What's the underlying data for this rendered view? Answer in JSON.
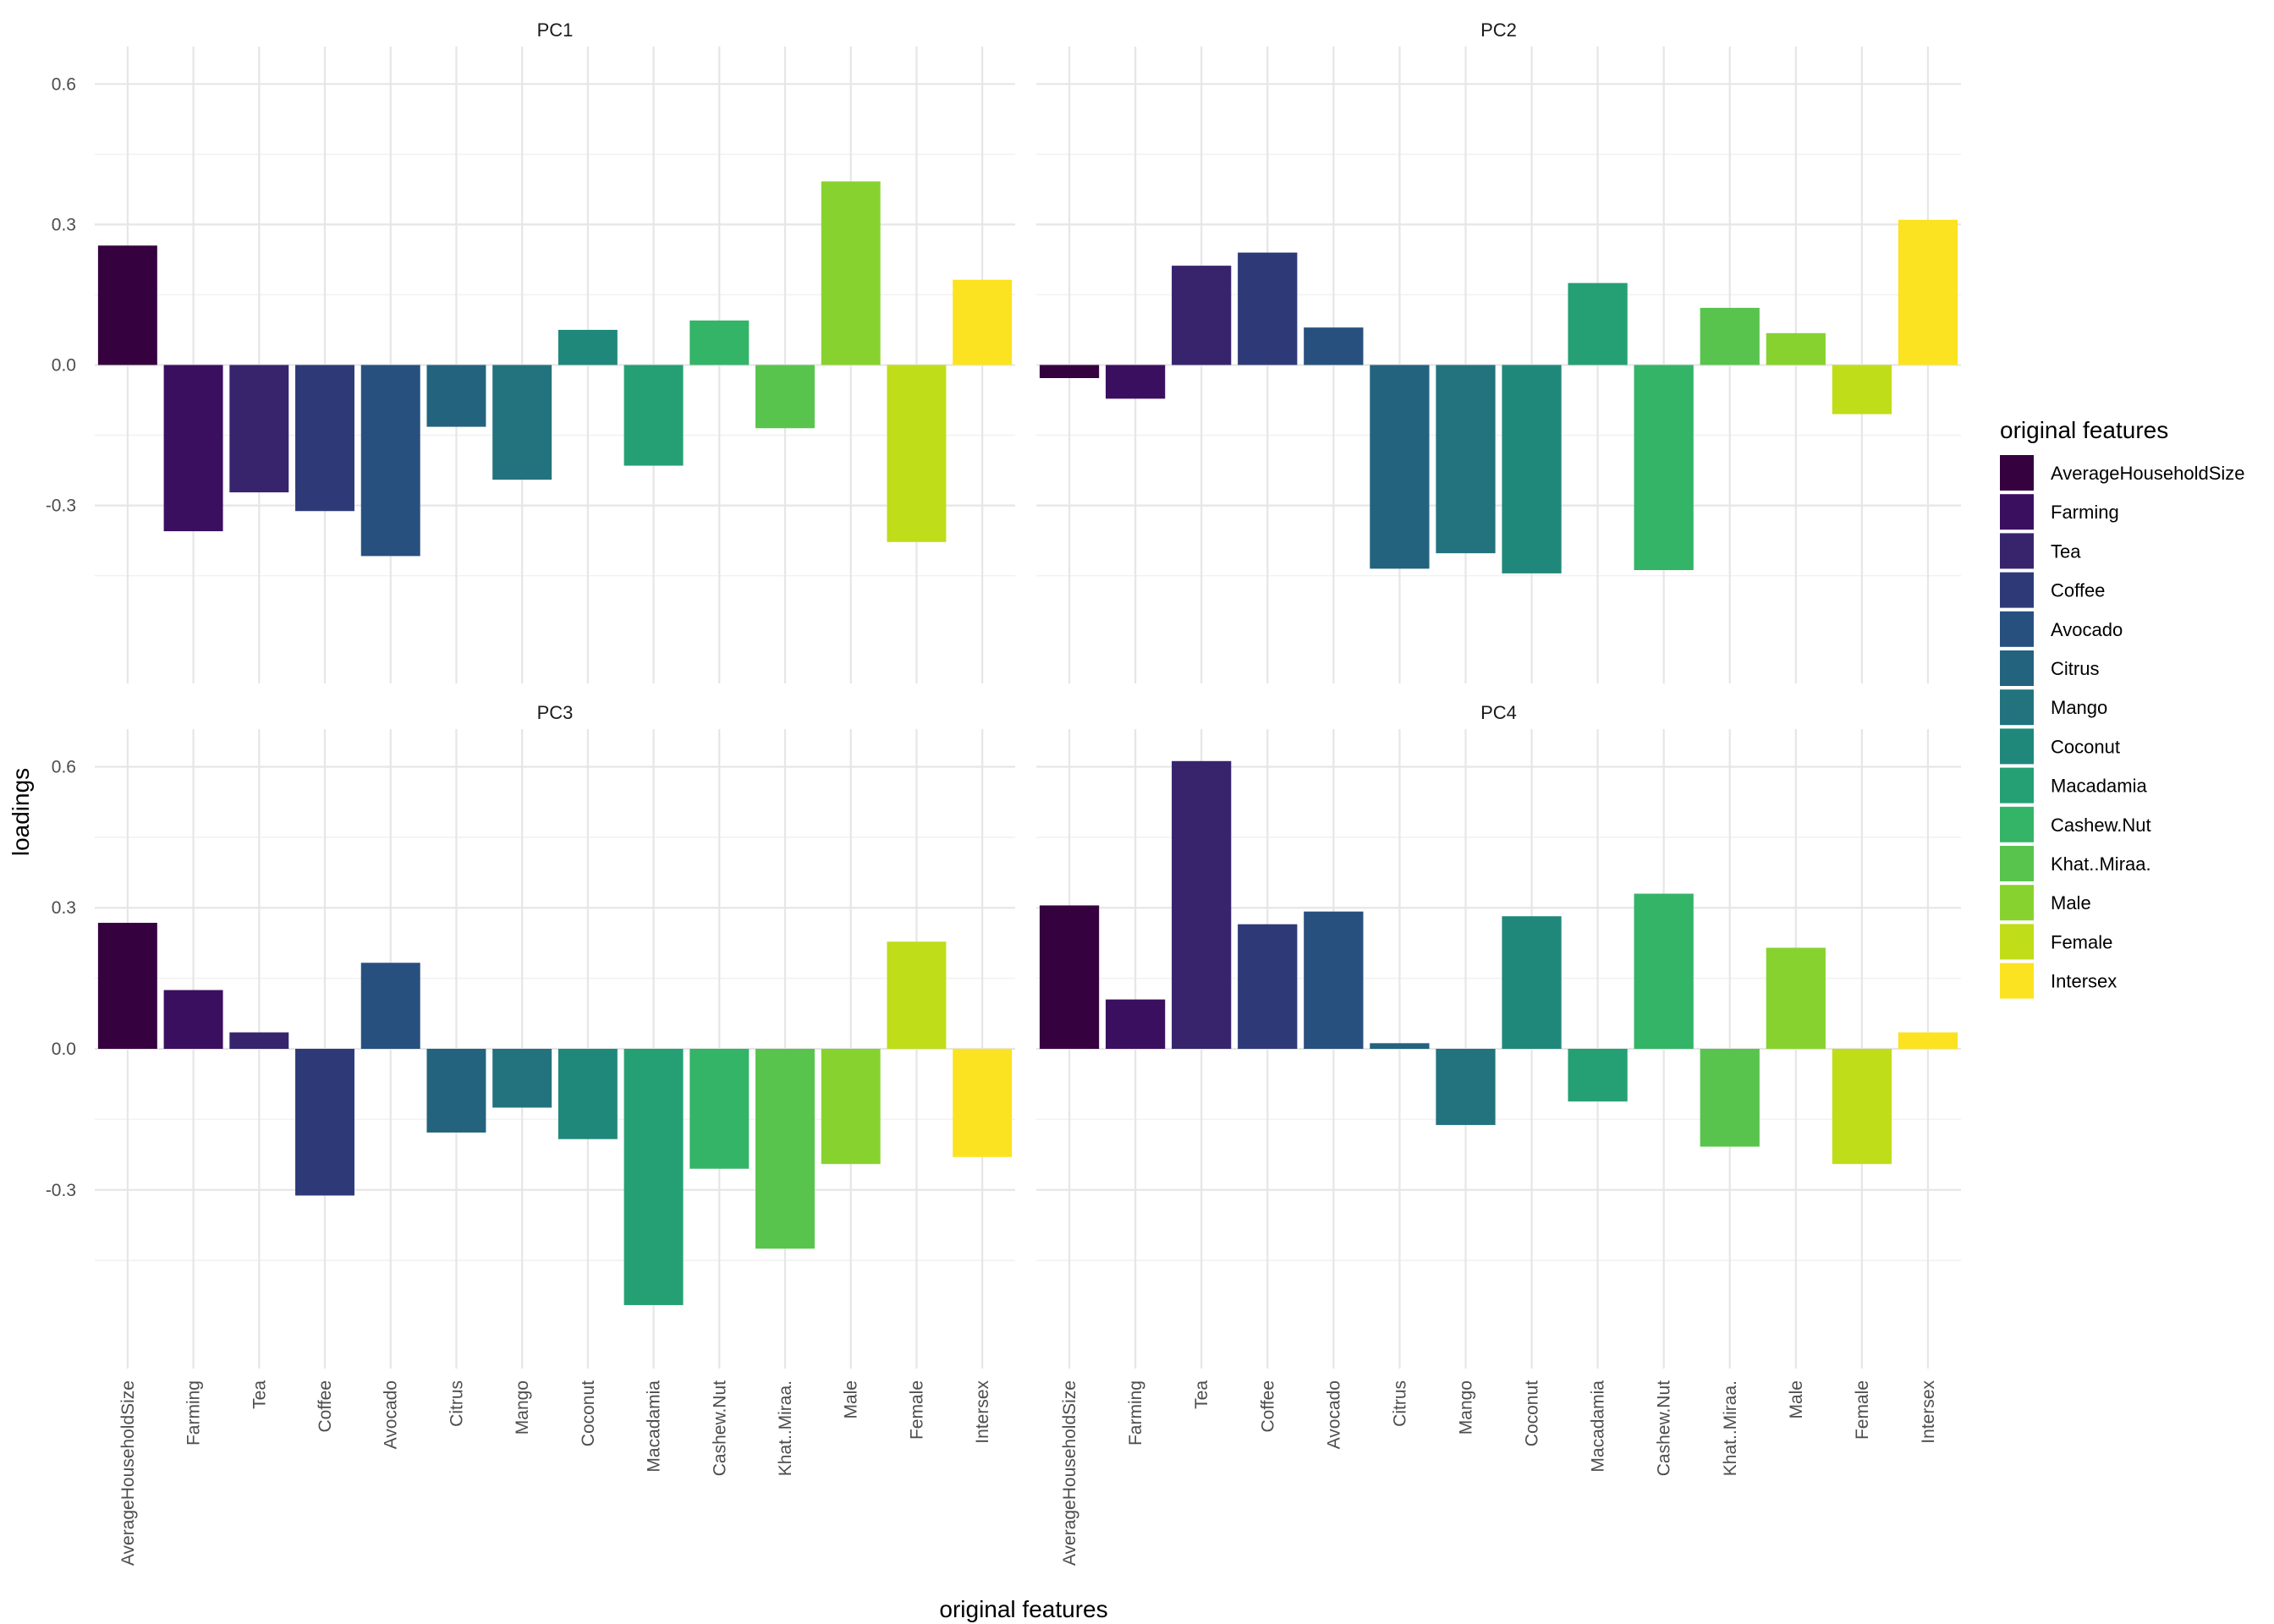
{
  "chart_data": {
    "type": "bar",
    "facets": [
      "PC1",
      "PC2",
      "PC3",
      "PC4"
    ],
    "categories": [
      "AverageHouseholdSize",
      "Farming",
      "Tea",
      "Coffee",
      "Avocado",
      "Citrus",
      "Mango",
      "Coconut",
      "Macadamia",
      "Cashew.Nut",
      "Khat..Miraa.",
      "Male",
      "Female",
      "Intersex"
    ],
    "series": [
      {
        "name": "PC1",
        "values": [
          0.255,
          -0.355,
          -0.272,
          -0.312,
          -0.408,
          -0.132,
          -0.245,
          0.075,
          -0.215,
          0.095,
          -0.135,
          0.392,
          -0.378,
          0.182
        ]
      },
      {
        "name": "PC2",
        "values": [
          -0.028,
          -0.072,
          0.212,
          0.24,
          0.08,
          -0.435,
          -0.402,
          -0.445,
          0.175,
          -0.438,
          0.122,
          0.068,
          -0.105,
          0.31
        ]
      },
      {
        "name": "PC3",
        "values": [
          0.268,
          0.125,
          0.035,
          -0.312,
          0.183,
          -0.178,
          -0.125,
          -0.192,
          -0.545,
          -0.255,
          -0.425,
          -0.245,
          0.228,
          -0.23
        ]
      },
      {
        "name": "PC4",
        "values": [
          0.305,
          0.105,
          0.612,
          0.265,
          0.292,
          0.012,
          -0.162,
          0.282,
          -0.112,
          0.33,
          -0.208,
          0.215,
          -0.245,
          0.035
        ]
      }
    ],
    "colors": [
      "#440154",
      "#481A6C",
      "#472F7D",
      "#414487",
      "#39568C",
      "#31688E",
      "#2A788E",
      "#23888E",
      "#1F988B",
      "#22A884",
      "#35B779",
      "#54C568",
      "#7AD151",
      "#A5DB36",
      "#D2E21B",
      "#FDE725"
    ],
    "bar_colors": [
      "#35013F",
      "#3B0F60",
      "#37246D",
      "#2E3A78",
      "#27507F",
      "#23637E",
      "#23737F",
      "#1F887B",
      "#25A074",
      "#34B466",
      "#58C44E",
      "#88D22F",
      "#C0DD1A",
      "#FBE321"
    ],
    "ylabel": "loadings",
    "xlabel": "original features",
    "ylim": [
      -0.68,
      0.68
    ],
    "yticks": [
      -0.3,
      0.0,
      0.3,
      0.6
    ],
    "ytick_labels": [
      "-0.3",
      "0.0",
      "0.3",
      "0.6"
    ],
    "legend": {
      "title": "original features",
      "position": "right",
      "entries": [
        "AverageHouseholdSize",
        "Farming",
        "Tea",
        "Coffee",
        "Avocado",
        "Citrus",
        "Mango",
        "Coconut",
        "Macadamia",
        "Cashew.Nut",
        "Khat..Miraa.",
        "Male",
        "Female",
        "Intersex"
      ]
    },
    "grid": true
  }
}
